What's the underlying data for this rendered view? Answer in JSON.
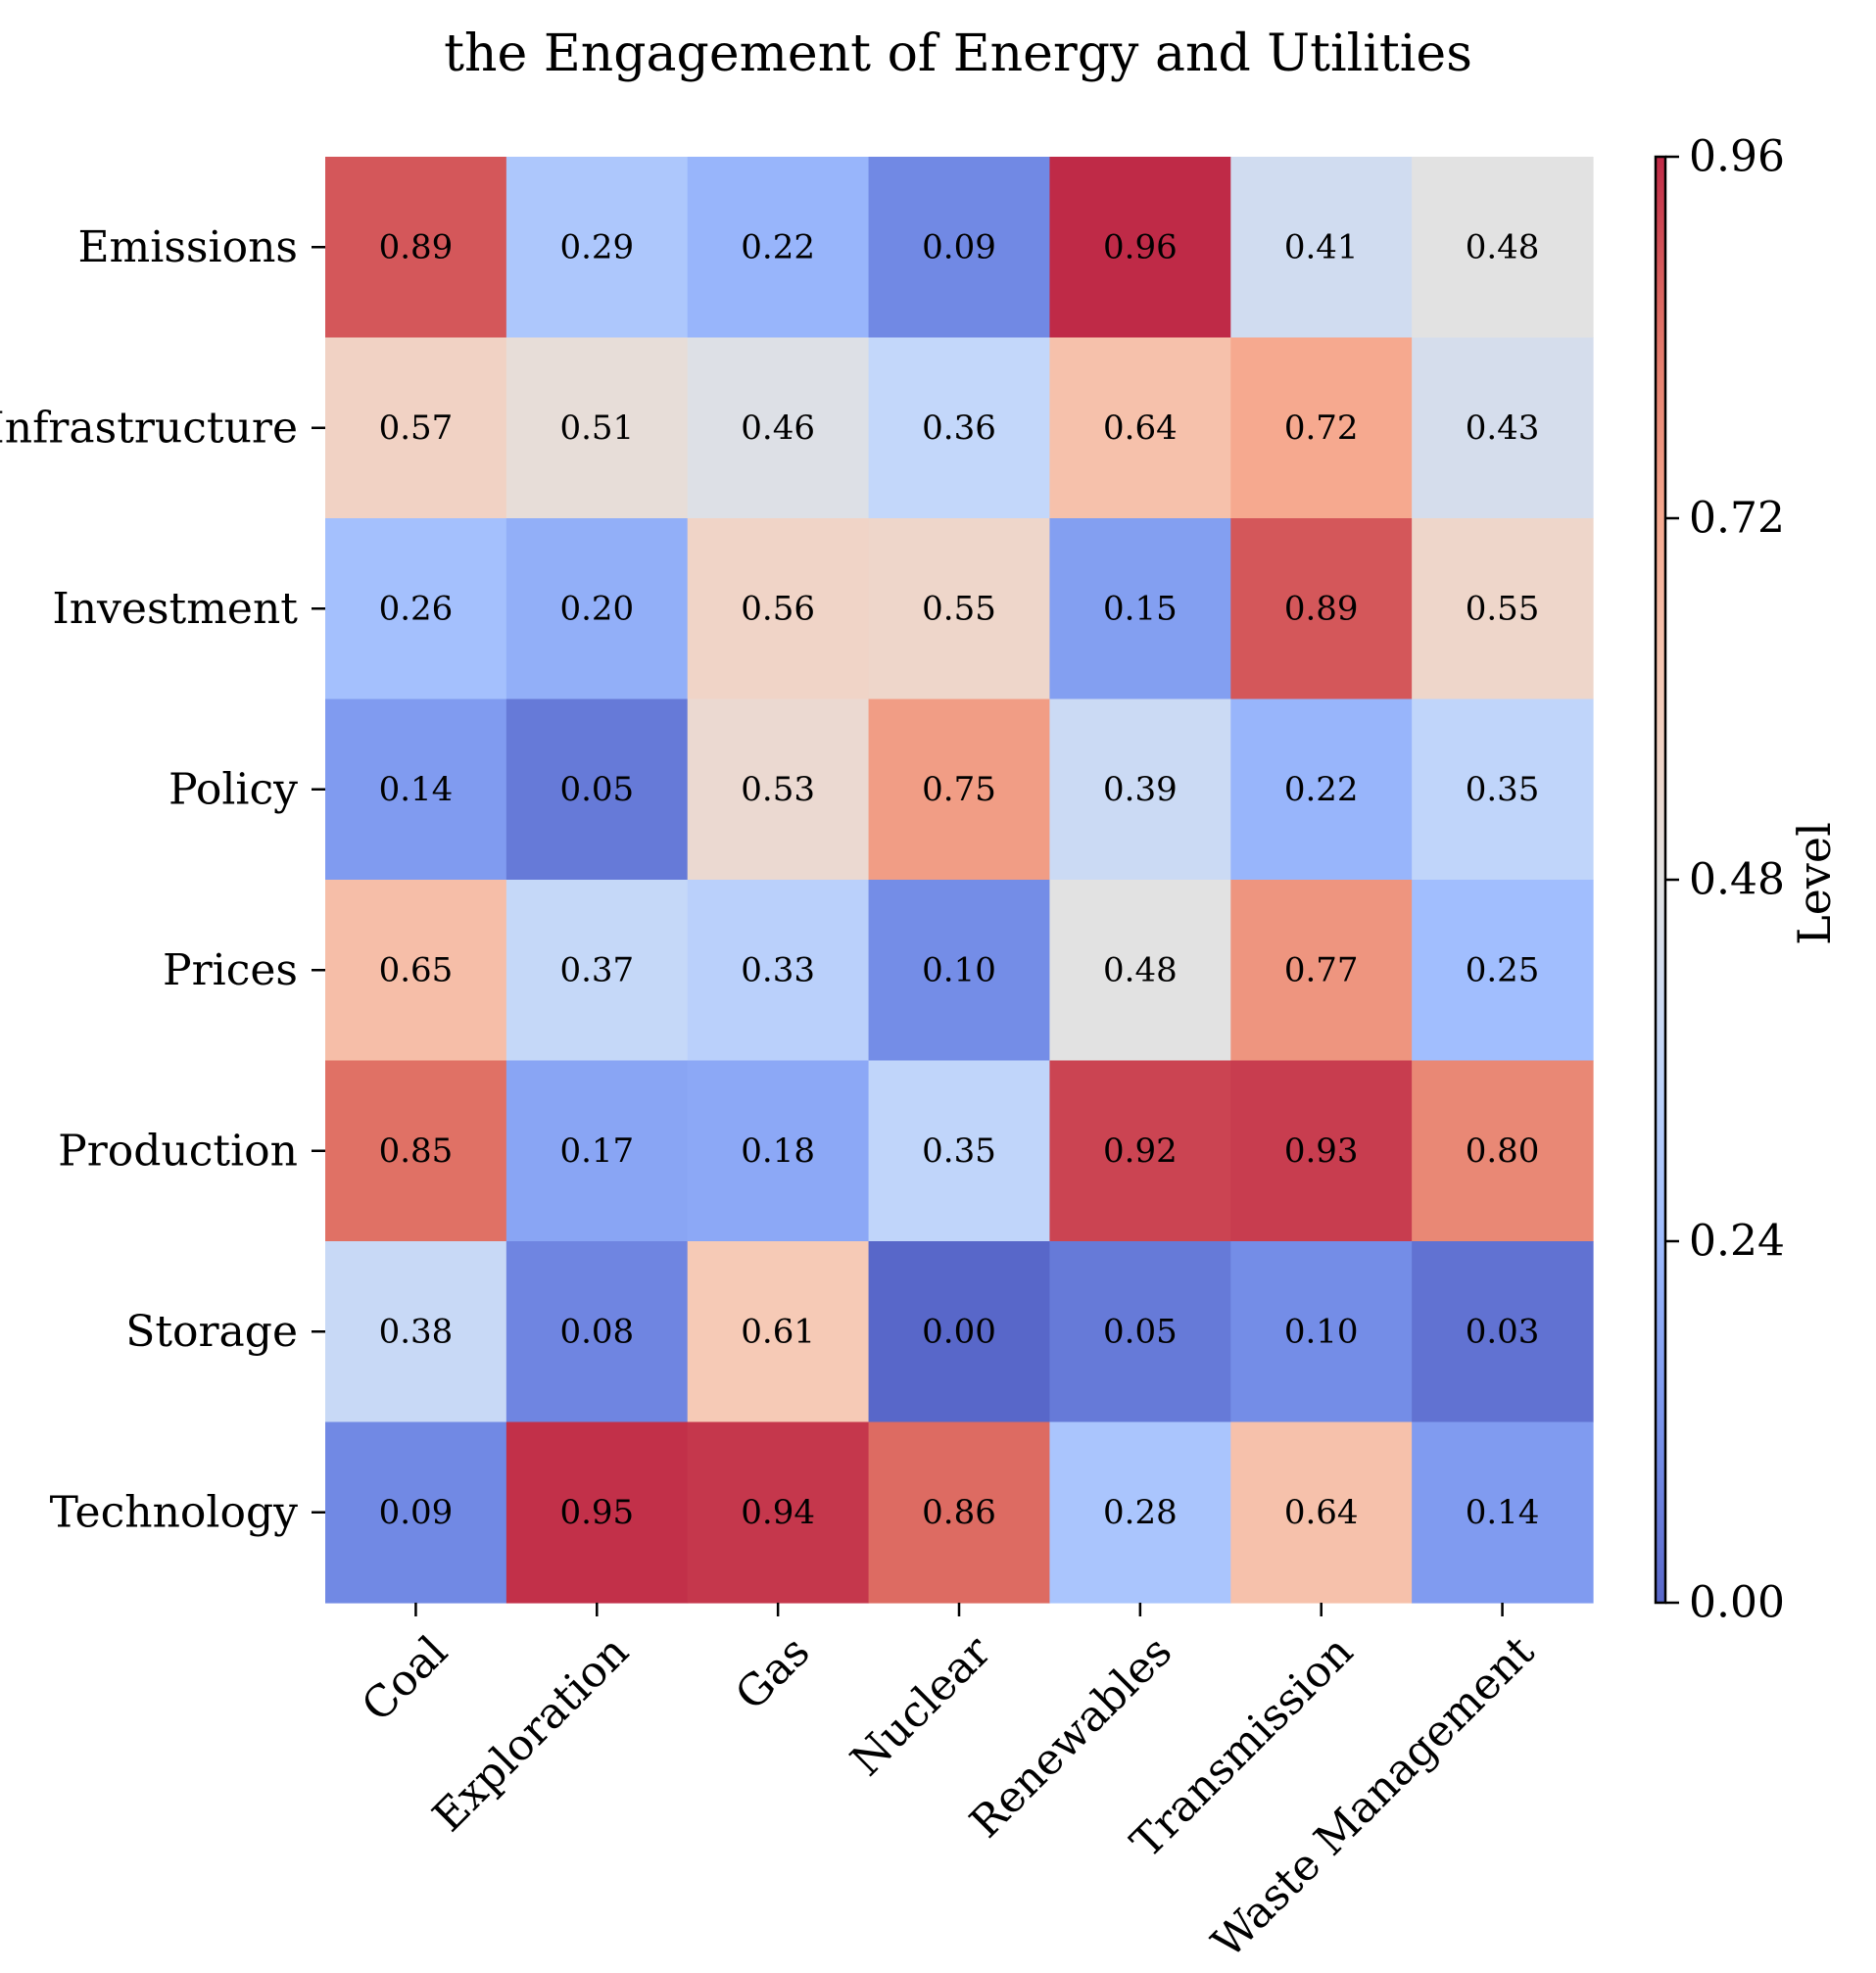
{
  "chart_data": {
    "type": "heatmap",
    "title": "the Engagement of Energy and Utilities",
    "x_categories": [
      "Coal",
      "Exploration",
      "Gas",
      "Nuclear",
      "Renewables",
      "Transmission",
      "Waste Management"
    ],
    "y_categories": [
      "Emissions",
      "Infrastructure",
      "Investment",
      "Policy",
      "Prices",
      "Production",
      "Storage",
      "Technology"
    ],
    "values": [
      [
        0.89,
        0.29,
        0.22,
        0.09,
        0.96,
        0.41,
        0.48
      ],
      [
        0.57,
        0.51,
        0.46,
        0.36,
        0.64,
        0.72,
        0.43
      ],
      [
        0.26,
        0.2,
        0.56,
        0.55,
        0.15,
        0.89,
        0.55
      ],
      [
        0.14,
        0.05,
        0.53,
        0.75,
        0.39,
        0.22,
        0.35
      ],
      [
        0.65,
        0.37,
        0.33,
        0.1,
        0.48,
        0.77,
        0.25
      ],
      [
        0.85,
        0.17,
        0.18,
        0.35,
        0.92,
        0.93,
        0.8
      ],
      [
        0.38,
        0.08,
        0.61,
        0.0,
        0.05,
        0.1,
        0.03
      ],
      [
        0.09,
        0.95,
        0.94,
        0.86,
        0.28,
        0.64,
        0.14
      ]
    ],
    "value_labels": [
      [
        "0.89",
        "0.29",
        "0.22",
        "0.09",
        "0.96",
        "0.41",
        "0.48"
      ],
      [
        "0.57",
        "0.51",
        "0.46",
        "0.36",
        "0.64",
        "0.72",
        "0.43"
      ],
      [
        "0.26",
        "0.20",
        "0.56",
        "0.55",
        "0.15",
        "0.89",
        "0.55"
      ],
      [
        "0.14",
        "0.05",
        "0.53",
        "0.75",
        "0.39",
        "0.22",
        "0.35"
      ],
      [
        "0.65",
        "0.37",
        "0.33",
        "0.10",
        "0.48",
        "0.77",
        "0.25"
      ],
      [
        "0.85",
        "0.17",
        "0.18",
        "0.35",
        "0.92",
        "0.93",
        "0.80"
      ],
      [
        "0.38",
        "0.08",
        "0.61",
        "0.00",
        "0.05",
        "0.10",
        "0.03"
      ],
      [
        "0.09",
        "0.95",
        "0.94",
        "0.86",
        "0.28",
        "0.64",
        "0.14"
      ]
    ],
    "colorbar": {
      "label": "Level",
      "range": [
        0.0,
        0.96
      ],
      "ticks": [
        0.0,
        0.24,
        0.48,
        0.72,
        0.96
      ],
      "tick_labels": [
        "0.00",
        "0.24",
        "0.48",
        "0.72",
        "0.96"
      ],
      "colormap": "coolwarm",
      "alpha": 0.85
    }
  }
}
